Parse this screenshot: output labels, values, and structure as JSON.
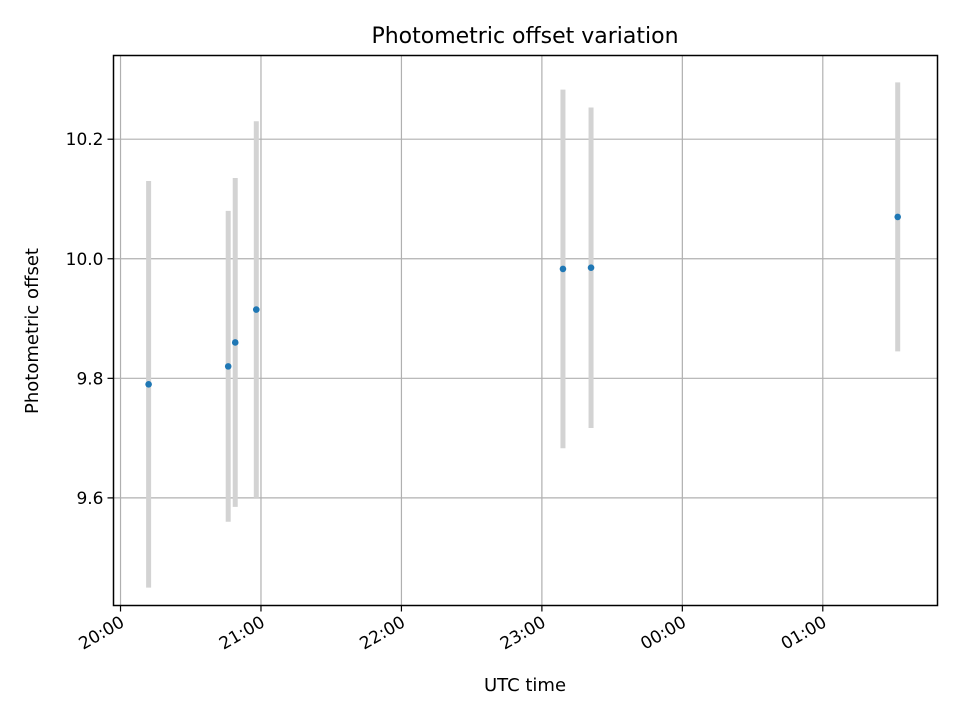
{
  "chart_data": {
    "type": "scatter",
    "title": "Photometric offset variation",
    "xlabel": "UTC time",
    "ylabel": "Photometric offset",
    "x_type": "time",
    "xlim": [
      "19:57",
      "01:49"
    ],
    "ylim": [
      9.42,
      10.34
    ],
    "x_ticks": [
      "20:00",
      "21:00",
      "22:00",
      "23:00",
      "00:00",
      "01:00"
    ],
    "y_ticks": [
      9.6,
      9.8,
      10.0,
      10.2
    ],
    "grid": true,
    "series": [
      {
        "marker_color": "#1f77b4",
        "errorbar_color": "#d3d3d3",
        "points": [
          {
            "x": "20:12",
            "y": 9.79,
            "err": 0.34
          },
          {
            "x": "20:46",
            "y": 9.82,
            "err": 0.26
          },
          {
            "x": "20:49",
            "y": 9.86,
            "err": 0.275
          },
          {
            "x": "20:58",
            "y": 9.915,
            "err": 0.315
          },
          {
            "x": "23:09",
            "y": 9.983,
            "err": 0.3
          },
          {
            "x": "23:21",
            "y": 9.985,
            "err": 0.268
          },
          {
            "x": "01:32",
            "y": 10.07,
            "err": 0.225
          }
        ]
      }
    ]
  }
}
